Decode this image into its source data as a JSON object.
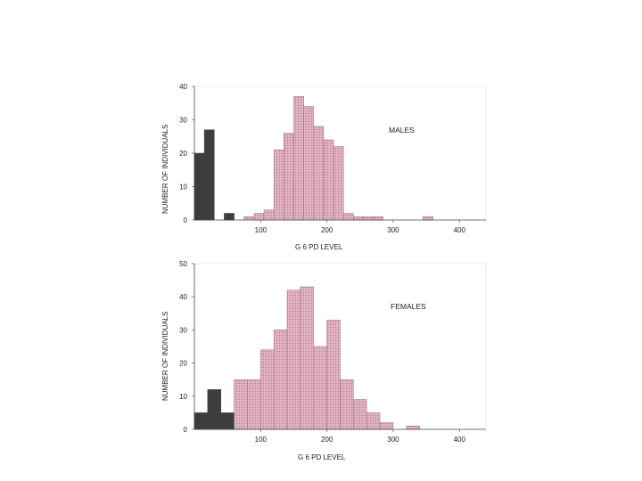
{
  "colors": {
    "deficient": "#3d3d3d",
    "normal": "#d9a3b4",
    "normal_stroke": "#9c6f7d",
    "axis": "#444444"
  },
  "chart_data": [
    {
      "type": "bar",
      "label": "MALES",
      "xlabel": "G 6 PD LEVEL",
      "ylabel": "NUMBER OF INDIVIDUALS",
      "xlim": [
        0,
        440
      ],
      "ylim": [
        0,
        40
      ],
      "xticks": [
        100,
        200,
        300,
        400
      ],
      "yticks": [
        0,
        10,
        20,
        30,
        40
      ],
      "bin_width": 15,
      "bins": [
        {
          "x0": 0,
          "value": 20,
          "group": "deficient"
        },
        {
          "x0": 15,
          "value": 27,
          "group": "deficient"
        },
        {
          "x0": 45,
          "value": 2,
          "group": "deficient"
        },
        {
          "x0": 60,
          "value": 0,
          "group": "normal"
        },
        {
          "x0": 75,
          "value": 1,
          "group": "normal"
        },
        {
          "x0": 90,
          "value": 2,
          "group": "normal"
        },
        {
          "x0": 105,
          "value": 3,
          "group": "normal"
        },
        {
          "x0": 120,
          "value": 21,
          "group": "normal"
        },
        {
          "x0": 135,
          "value": 26,
          "group": "normal"
        },
        {
          "x0": 150,
          "value": 37,
          "group": "normal"
        },
        {
          "x0": 165,
          "value": 34,
          "group": "normal"
        },
        {
          "x0": 180,
          "value": 28,
          "group": "normal"
        },
        {
          "x0": 195,
          "value": 24,
          "group": "normal"
        },
        {
          "x0": 210,
          "value": 22,
          "group": "normal"
        },
        {
          "x0": 225,
          "value": 2,
          "group": "normal"
        },
        {
          "x0": 240,
          "value": 1,
          "group": "normal"
        },
        {
          "x0": 255,
          "value": 1,
          "group": "normal"
        },
        {
          "x0": 270,
          "value": 1,
          "group": "normal"
        },
        {
          "x0": 345,
          "value": 1,
          "group": "normal"
        }
      ]
    },
    {
      "type": "bar",
      "label": "FEMALES",
      "xlabel": "G 6 PD LEVEL",
      "ylabel": "NUMBER OF INDIVIDUALS",
      "xlim": [
        0,
        440
      ],
      "ylim": [
        0,
        50
      ],
      "xticks": [
        100,
        200,
        300,
        400
      ],
      "yticks": [
        0,
        10,
        20,
        30,
        40,
        50
      ],
      "bin_width": 20,
      "bins": [
        {
          "x0": 0,
          "value": 5,
          "group": "deficient"
        },
        {
          "x0": 20,
          "value": 12,
          "group": "deficient"
        },
        {
          "x0": 40,
          "value": 5,
          "group": "deficient"
        },
        {
          "x0": 60,
          "value": 15,
          "group": "normal"
        },
        {
          "x0": 80,
          "value": 15,
          "group": "normal"
        },
        {
          "x0": 100,
          "value": 24,
          "group": "normal"
        },
        {
          "x0": 120,
          "value": 30,
          "group": "normal"
        },
        {
          "x0": 140,
          "value": 42,
          "group": "normal"
        },
        {
          "x0": 160,
          "value": 43,
          "group": "normal"
        },
        {
          "x0": 180,
          "value": 25,
          "group": "normal"
        },
        {
          "x0": 200,
          "value": 33,
          "group": "normal"
        },
        {
          "x0": 220,
          "value": 15,
          "group": "normal"
        },
        {
          "x0": 240,
          "value": 9,
          "group": "normal"
        },
        {
          "x0": 260,
          "value": 5,
          "group": "normal"
        },
        {
          "x0": 280,
          "value": 2,
          "group": "normal"
        },
        {
          "x0": 300,
          "value": 0,
          "group": "normal"
        },
        {
          "x0": 320,
          "value": 1,
          "group": "normal"
        }
      ]
    }
  ]
}
